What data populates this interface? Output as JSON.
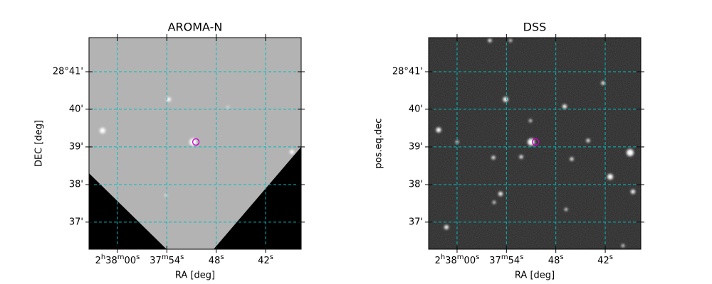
{
  "chart_data": [
    {
      "type": "image",
      "title": "AROMA-N",
      "xlabel": "RA [deg]",
      "ylabel": "DEC [deg]",
      "xlim": [
        39.5144,
        39.407
      ],
      "ylim": [
        28.6047,
        28.6984
      ],
      "xticks": [
        {
          "value": 39.5,
          "label": "2h38m00s"
        },
        {
          "value": 39.475,
          "label": "37m54s"
        },
        {
          "value": 39.45,
          "label": "48s"
        },
        {
          "value": 39.425,
          "label": "42s"
        }
      ],
      "yticks": [
        {
          "value": 28.6833,
          "label": "28°41'"
        },
        {
          "value": 28.6667,
          "label": "40'"
        },
        {
          "value": 28.65,
          "label": "39'"
        },
        {
          "value": 28.6333,
          "label": "38'"
        },
        {
          "value": 28.6167,
          "label": "37'"
        }
      ],
      "grid": true,
      "grid_color": "#00bcbc",
      "marker": {
        "x": 39.4603,
        "y": 28.6522,
        "color": "#cc00cc"
      }
    },
    {
      "type": "image",
      "title": "DSS",
      "xlabel": "RA [deg]",
      "ylabel": "pos.eq.dec",
      "xlim": [
        39.5144,
        39.407
      ],
      "ylim": [
        28.6047,
        28.6984
      ],
      "xticks": [
        {
          "value": 39.5,
          "label": "2h38m00s"
        },
        {
          "value": 39.475,
          "label": "37m54s"
        },
        {
          "value": 39.45,
          "label": "48s"
        },
        {
          "value": 39.425,
          "label": "42s"
        }
      ],
      "yticks": [
        {
          "value": 28.6833,
          "label": "28°41'"
        },
        {
          "value": 28.6667,
          "label": "40'"
        },
        {
          "value": 28.65,
          "label": "39'"
        },
        {
          "value": 28.6333,
          "label": "38'"
        },
        {
          "value": 28.6167,
          "label": "37'"
        }
      ],
      "grid": true,
      "grid_color": "#00bcbc",
      "marker": {
        "x": 39.4603,
        "y": 28.6522,
        "color": "#cc00cc"
      }
    }
  ]
}
